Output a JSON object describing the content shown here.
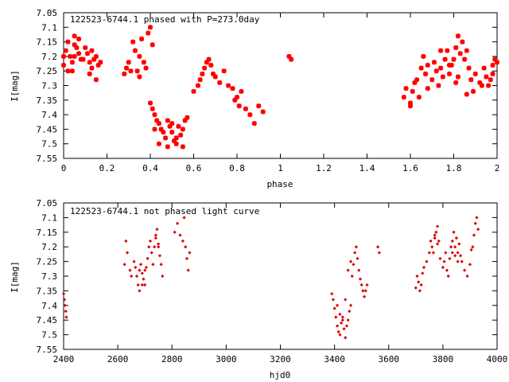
{
  "chart_data": [
    {
      "type": "scatter",
      "title": "122523-6744.1 phased with P=273.0day",
      "xlabel": "phase",
      "ylabel": "I[mag]",
      "xlim": [
        0,
        2
      ],
      "ylim": [
        7.55,
        7.05
      ],
      "y_inverted": true,
      "grid": false,
      "marker": "star",
      "color": "#ff0000",
      "xticks": [
        "0",
        "0.2",
        "0.4",
        "0.6",
        "0.8",
        "1",
        "1.2",
        "1.4",
        "1.6",
        "1.8",
        "2"
      ],
      "yticks": [
        "7.05",
        "7.1",
        "7.15",
        "7.2",
        "7.25",
        "7.3",
        "7.35",
        "7.4",
        "7.45",
        "7.5",
        "7.55"
      ],
      "series": [
        {
          "x": [
            0.0,
            0.01,
            0.02,
            0.03,
            0.04,
            0.05,
            0.06,
            0.07,
            0.08,
            0.1,
            0.11,
            0.12,
            0.13,
            0.14,
            0.15,
            0.16,
            0.17,
            0.02,
            0.05,
            0.07,
            0.12,
            0.15,
            0.05,
            0.09,
            0.13,
            0.0,
            0.04,
            0.28,
            0.29,
            0.3,
            0.32,
            0.33,
            0.34,
            0.35,
            0.36,
            0.37,
            0.39,
            0.4,
            0.41,
            0.31,
            0.35,
            0.38,
            0.4,
            0.41,
            0.42,
            0.43,
            0.44,
            0.45,
            0.46,
            0.47,
            0.48,
            0.49,
            0.5,
            0.51,
            0.52,
            0.53,
            0.54,
            0.55,
            0.56,
            0.57,
            0.44,
            0.48,
            0.52,
            0.55,
            0.42,
            0.5,
            0.6,
            0.62,
            0.63,
            0.64,
            0.65,
            0.66,
            0.67,
            0.68,
            0.69,
            0.7,
            0.72,
            0.74,
            0.76,
            0.78,
            0.79,
            0.8,
            0.81,
            0.82,
            0.84,
            0.86,
            0.88,
            0.9,
            0.92,
            1.04,
            1.05,
            1.57,
            1.58,
            1.6,
            1.61,
            1.62,
            1.64,
            1.65,
            1.66,
            1.67,
            1.68,
            1.7,
            1.71,
            1.72,
            1.73,
            1.74,
            1.75,
            1.76,
            1.77,
            1.78,
            1.79,
            1.8,
            1.81,
            1.82,
            1.83,
            1.84,
            1.85,
            1.86,
            1.87,
            1.88,
            1.9,
            1.92,
            1.94,
            1.95,
            1.96,
            1.97,
            1.98,
            1.99,
            2.0,
            1.6,
            1.63,
            1.68,
            1.78,
            1.82,
            1.86,
            1.93,
            1.98,
            1.74,
            1.81,
            1.89
          ],
          "y": [
            7.2,
            7.18,
            7.15,
            7.2,
            7.22,
            7.13,
            7.17,
            7.19,
            7.21,
            7.17,
            7.19,
            7.22,
            7.24,
            7.21,
            7.2,
            7.23,
            7.22,
            7.25,
            7.16,
            7.14,
            7.26,
            7.28,
            7.2,
            7.21,
            7.18,
            7.23,
            7.25,
            7.26,
            7.24,
            7.22,
            7.15,
            7.18,
            7.25,
            7.2,
            7.14,
            7.22,
            7.12,
            7.1,
            7.16,
            7.25,
            7.27,
            7.24,
            7.36,
            7.38,
            7.4,
            7.42,
            7.43,
            7.45,
            7.46,
            7.48,
            7.42,
            7.44,
            7.46,
            7.49,
            7.5,
            7.44,
            7.47,
            7.45,
            7.42,
            7.41,
            7.5,
            7.51,
            7.48,
            7.51,
            7.45,
            7.43,
            7.32,
            7.3,
            7.28,
            7.26,
            7.24,
            7.22,
            7.21,
            7.23,
            7.26,
            7.27,
            7.29,
            7.25,
            7.3,
            7.31,
            7.35,
            7.34,
            7.37,
            7.32,
            7.38,
            7.4,
            7.43,
            7.37,
            7.39,
            7.2,
            7.21,
            7.34,
            7.31,
            7.37,
            7.32,
            7.29,
            7.34,
            7.24,
            7.2,
            7.26,
            7.23,
            7.28,
            7.22,
            7.25,
            7.3,
            7.24,
            7.27,
            7.21,
            7.18,
            7.26,
            7.23,
            7.21,
            7.17,
            7.13,
            7.19,
            7.15,
            7.21,
            7.18,
            7.24,
            7.28,
            7.26,
            7.29,
            7.24,
            7.27,
            7.3,
            7.28,
            7.23,
            7.21,
            7.22,
            7.36,
            7.28,
            7.31,
            7.23,
            7.27,
            7.33,
            7.3,
            7.26,
            7.18,
            7.29,
            7.32
          ]
        }
      ]
    },
    {
      "type": "scatter",
      "title": "122523-6744.1 not phased light curve",
      "xlabel": "hjd0",
      "ylabel": "I[mag]",
      "xlim": [
        2400,
        4000
      ],
      "ylim": [
        7.55,
        7.05
      ],
      "y_inverted": true,
      "grid": false,
      "marker": "dot",
      "color": "#dd0000",
      "xticks": [
        "2400",
        "2600",
        "2800",
        "3000",
        "3200",
        "3400",
        "3600",
        "3800",
        "4000"
      ],
      "yticks": [
        "7.05",
        "7.1",
        "7.15",
        "7.2",
        "7.25",
        "7.3",
        "7.35",
        "7.4",
        "7.45",
        "7.5",
        "7.55"
      ],
      "series": [
        {
          "x": [
            2400,
            2403,
            2405,
            2408,
            2410,
            2625,
            2630,
            2635,
            2645,
            2650,
            2660,
            2665,
            2670,
            2675,
            2680,
            2685,
            2690,
            2695,
            2700,
            2705,
            2710,
            2715,
            2720,
            2725,
            2730,
            2735,
            2740,
            2745,
            2750,
            2755,
            2760,
            2765,
            2680,
            2690,
            2700,
            2740,
            2750,
            2810,
            2820,
            2830,
            2840,
            2845,
            2850,
            2855,
            2860,
            2865,
            3390,
            3395,
            3400,
            3405,
            3410,
            3415,
            3420,
            3425,
            3430,
            3435,
            3440,
            3445,
            3450,
            3455,
            3460,
            3465,
            3470,
            3475,
            3480,
            3485,
            3490,
            3495,
            3500,
            3505,
            3510,
            3515,
            3520,
            3410,
            3420,
            3430,
            3440,
            3450,
            3460,
            3560,
            3565,
            3700,
            3705,
            3710,
            3715,
            3720,
            3725,
            3730,
            3740,
            3750,
            3755,
            3760,
            3765,
            3770,
            3775,
            3780,
            3785,
            3790,
            3800,
            3805,
            3810,
            3815,
            3820,
            3825,
            3830,
            3835,
            3840,
            3845,
            3850,
            3855,
            3860,
            3865,
            3870,
            3880,
            3890,
            3900,
            3905,
            3910,
            3915,
            3920,
            3925,
            3930,
            3835,
            3845,
            3855,
            3770,
            3780
          ],
          "y": [
            7.36,
            7.38,
            7.4,
            7.42,
            7.44,
            7.26,
            7.18,
            7.22,
            7.28,
            7.3,
            7.25,
            7.27,
            7.3,
            7.33,
            7.28,
            7.26,
            7.29,
            7.31,
            7.33,
            7.27,
            7.24,
            7.2,
            7.18,
            7.22,
            7.26,
            7.2,
            7.17,
            7.14,
            7.2,
            7.23,
            7.26,
            7.3,
            7.35,
            7.33,
            7.28,
            7.16,
            7.19,
            7.15,
            7.12,
            7.16,
            7.18,
            7.1,
            7.2,
            7.24,
            7.28,
            7.22,
            7.36,
            7.38,
            7.41,
            7.44,
            7.47,
            7.49,
            7.5,
            7.46,
            7.44,
            7.48,
            7.51,
            7.47,
            7.45,
            7.42,
            7.4,
            7.3,
            7.26,
            7.22,
            7.2,
            7.24,
            7.28,
            7.31,
            7.33,
            7.35,
            7.37,
            7.35,
            7.33,
            7.4,
            7.43,
            7.45,
            7.38,
            7.28,
            7.25,
            7.2,
            7.22,
            7.34,
            7.3,
            7.32,
            7.35,
            7.33,
            7.29,
            7.27,
            7.25,
            7.22,
            7.18,
            7.2,
            7.22,
            7.17,
            7.15,
            7.13,
            7.18,
            7.24,
            7.27,
            7.25,
            7.22,
            7.28,
            7.3,
            7.24,
            7.2,
            7.18,
            7.15,
            7.2,
            7.17,
            7.22,
            7.19,
            7.23,
            7.25,
            7.28,
            7.3,
            7.26,
            7.21,
            7.2,
            7.16,
            7.12,
            7.1,
            7.14,
            7.22,
            7.23,
            7.25,
            7.16,
            7.19
          ]
        }
      ]
    }
  ]
}
